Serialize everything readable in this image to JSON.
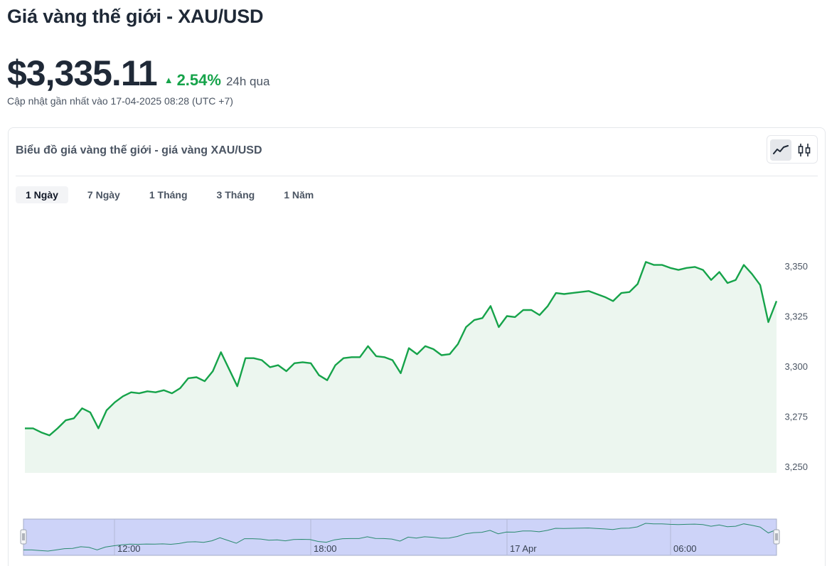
{
  "page": {
    "title": "Giá vàng thế giới - XAU/USD"
  },
  "price": {
    "value": "$3,335.11",
    "change_arrow": "▲",
    "change": "2.54%",
    "period": "24h qua",
    "updated": "Cập nhật gần nhất vào 17-04-2025 08:28 (UTC +7)"
  },
  "chart_card": {
    "title": "Biểu đồ giá vàng thế giới - giá vàng XAU/USD",
    "chart_type_toggle": [
      "line-chart-icon",
      "candlestick-chart-icon"
    ],
    "active_chart_type": "line-chart-icon",
    "tabs": [
      "1 Ngày",
      "7 Ngày",
      "1 Tháng",
      "3 Tháng",
      "1 Năm"
    ],
    "active_tab": "1 Ngày"
  },
  "colors": {
    "line": "#16a34a",
    "area": "#ecf6ef",
    "navigator_fill": "#cdd3f8",
    "navigator_border": "#a5adc8",
    "up": "#16a34a"
  },
  "chart_data": {
    "type": "area",
    "title": "",
    "xlabel": "",
    "ylabel": "",
    "ylim": [
      3250,
      3355
    ],
    "yticks": [
      3250,
      3275,
      3300,
      3325,
      3350
    ],
    "ytick_labels": [
      "3,250",
      "3,275",
      "3,300",
      "3,325",
      "3,350"
    ],
    "navigator_labels": [
      "12:00",
      "18:00",
      "17 Apr",
      "06:00"
    ],
    "grid": false,
    "legend": "none",
    "series": [
      {
        "values": [
          3269,
          3269,
          3267,
          3265.5,
          3269,
          3273,
          3274,
          3279,
          3277,
          3269,
          3278,
          3282,
          3285,
          3287,
          3286.5,
          3287.5,
          3287,
          3288,
          3286.5,
          3289,
          3294,
          3294.5,
          3292.5,
          3297.5,
          3307,
          3298.5,
          3290,
          3304,
          3304,
          3303,
          3299.5,
          3300.5,
          3297.5,
          3301.5,
          3302,
          3301.5,
          3295.5,
          3293,
          3300.5,
          3304,
          3304.5,
          3304.5,
          3310,
          3305,
          3304.5,
          3303,
          3296.5,
          3309,
          3306,
          3310,
          3308.5,
          3305.5,
          3306,
          3311,
          3319.5,
          3323,
          3324,
          3330,
          3319.5,
          3325,
          3324.5,
          3328,
          3328,
          3325.5,
          3330,
          3336.5,
          3336,
          3336.5,
          3337,
          3337.5,
          3336,
          3334.5,
          3332.5,
          3336.5,
          3337,
          3341,
          3352,
          3350.5,
          3350.5,
          3349,
          3348,
          3349,
          3349.5,
          3348,
          3343,
          3347,
          3341.5,
          3343,
          3350.5,
          3346,
          3340.5,
          3322,
          3332.5
        ]
      }
    ]
  }
}
